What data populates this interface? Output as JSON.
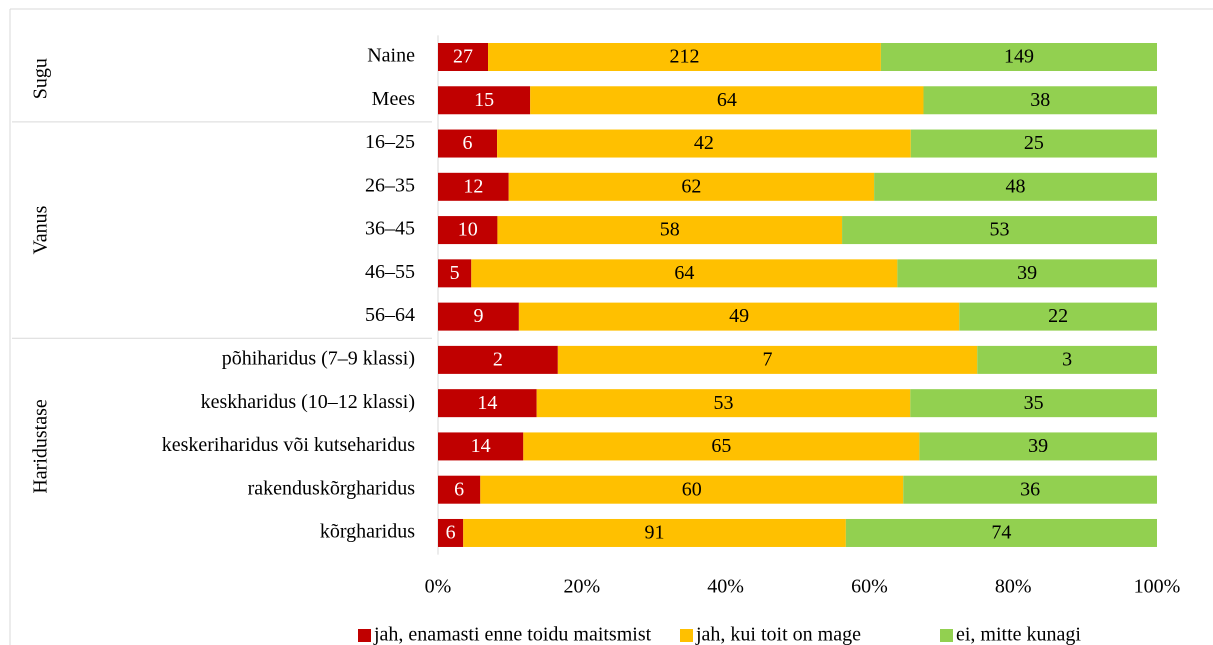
{
  "chart_data": {
    "type": "bar",
    "orientation": "horizontal",
    "stacked": "percent",
    "groups": [
      {
        "name": "Sugu",
        "categories": [
          "Naine",
          "Mees"
        ]
      },
      {
        "name": "Vanus",
        "categories": [
          "16–25",
          "26–35",
          "36–45",
          "46–55",
          "56–64"
        ]
      },
      {
        "name": "Haridustase",
        "categories": [
          "põhiharidus (7–9 klassi)",
          "keskharidus (10–12 klassi)",
          "keskeriharidus või kutseharidus",
          "rakenduskõrgharidus",
          "kõrgharidus"
        ]
      }
    ],
    "series": [
      {
        "name": "jah, enamasti enne toidu maitsmist",
        "color": "#c00000",
        "values": [
          27,
          15,
          6,
          12,
          10,
          5,
          9,
          2,
          14,
          14,
          6,
          6
        ]
      },
      {
        "name": "jah, kui toit on mage",
        "color": "#ffc000",
        "values": [
          212,
          64,
          42,
          62,
          58,
          64,
          49,
          7,
          53,
          65,
          60,
          91
        ]
      },
      {
        "name": "ei, mitte kunagi",
        "color": "#92d050",
        "values": [
          149,
          38,
          25,
          48,
          53,
          39,
          22,
          3,
          35,
          39,
          36,
          74
        ]
      }
    ],
    "xlim": [
      0,
      100
    ],
    "xticks": [
      {
        "value": 0,
        "label": "0%"
      },
      {
        "value": 20,
        "label": "20%"
      },
      {
        "value": 40,
        "label": "40%"
      },
      {
        "value": 60,
        "label": "60%"
      },
      {
        "value": 80,
        "label": "80%"
      },
      {
        "value": 100,
        "label": "100%"
      }
    ],
    "legend": "bottom"
  }
}
